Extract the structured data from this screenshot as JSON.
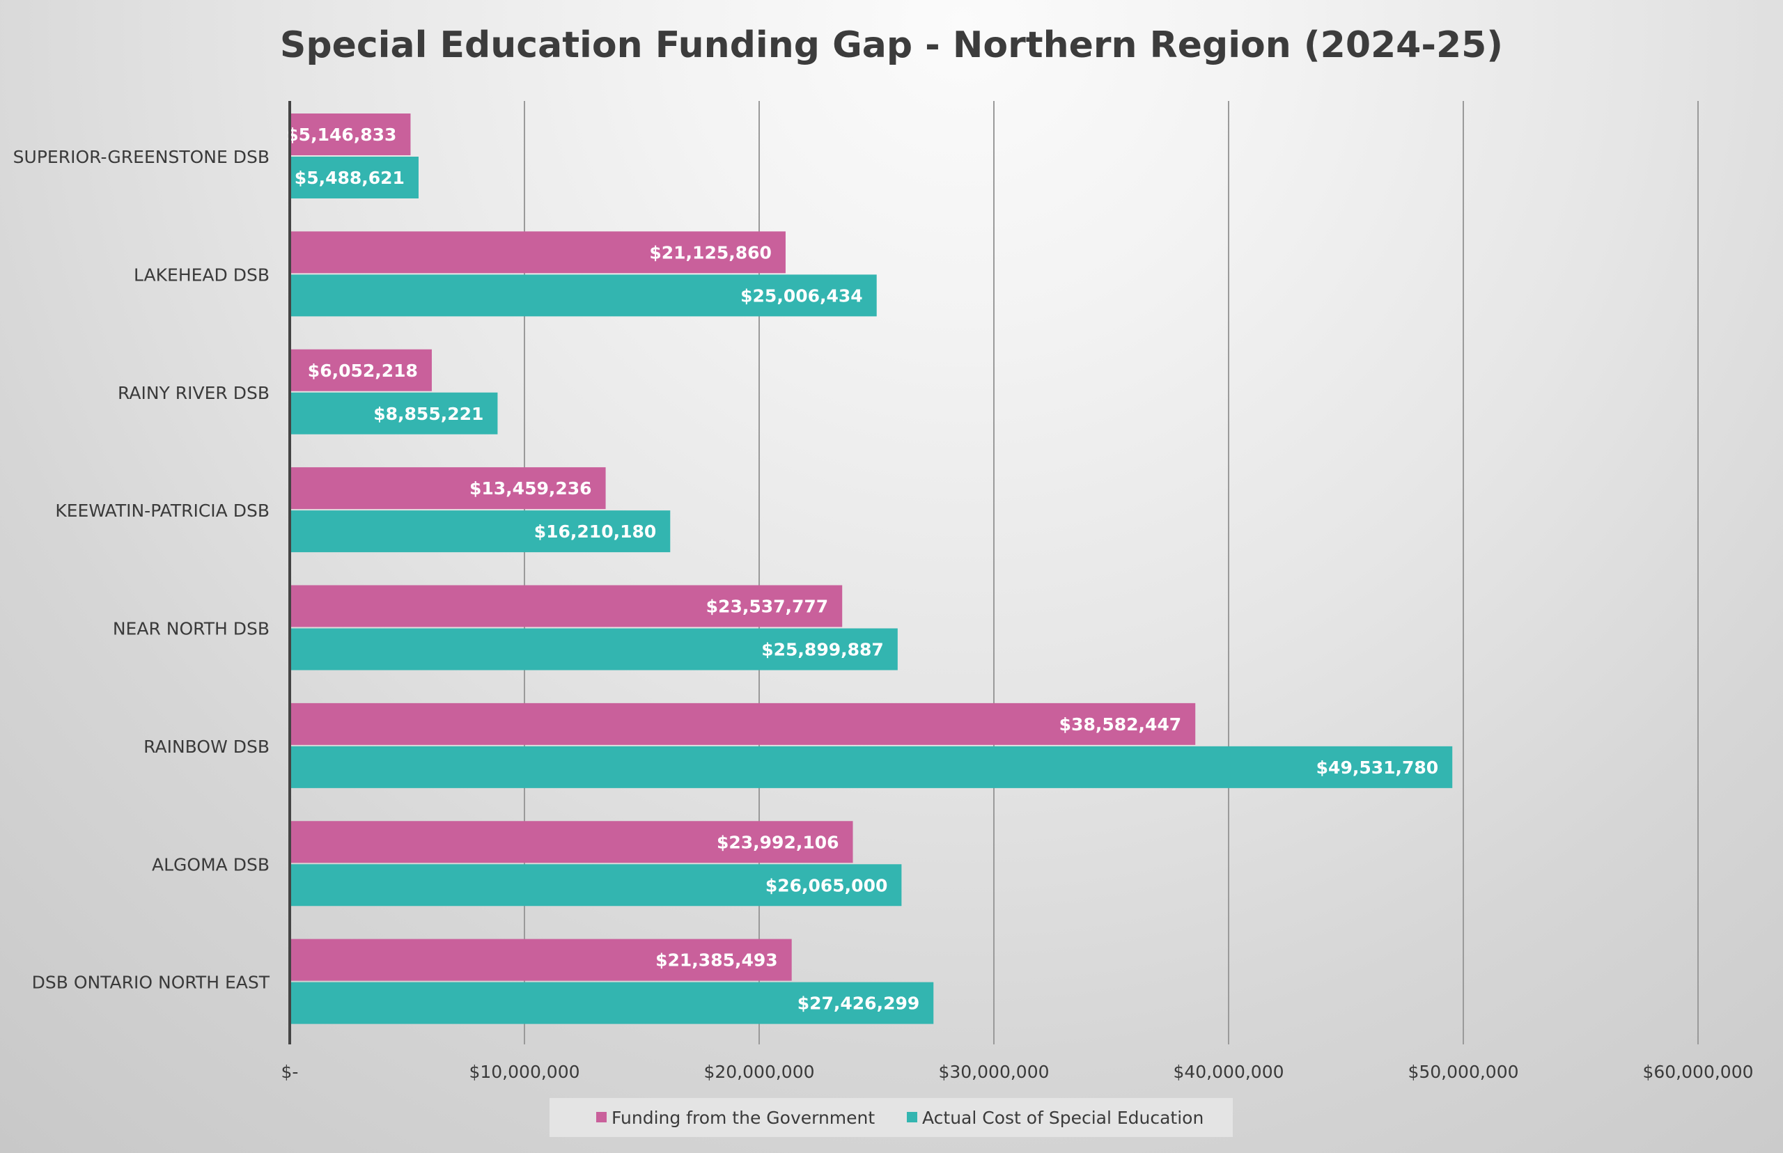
{
  "chart_data": {
    "type": "bar",
    "orientation": "horizontal",
    "title": "Special Education Funding Gap - Northern Region (2024-25)",
    "categories": [
      "SUPERIOR-GREENSTONE DSB",
      "LAKEHEAD DSB",
      "RAINY RIVER DSB",
      "KEEWATIN-PATRICIA DSB",
      "NEAR NORTH DSB",
      "RAINBOW DSB",
      "ALGOMA DSB",
      "DSB ONTARIO NORTH EAST"
    ],
    "series": [
      {
        "name": "Funding from the Government",
        "color": "#c9609b",
        "values": [
          5146833,
          21125860,
          6052218,
          13459236,
          23537777,
          38582447,
          23992106,
          21385493
        ],
        "labels": [
          "$5,146,833",
          "$21,125,860",
          "$6,052,218",
          "$13,459,236",
          "$23,537,777",
          "$38,582,447",
          "$23,992,106",
          "$21,385,493"
        ]
      },
      {
        "name": "Actual Cost of Special Education",
        "color": "#33b5b0",
        "values": [
          5488621,
          25006434,
          8855221,
          16210180,
          25899887,
          49531780,
          26065000,
          27426299
        ],
        "labels": [
          "$5,488,621",
          "$25,006,434",
          "$8,855,221",
          "$16,210,180",
          "$25,899,887",
          "$49,531,780",
          "$26,065,000",
          "$27,426,299"
        ]
      }
    ],
    "xlim": [
      0,
      60000000
    ],
    "ticks": [
      {
        "value": 0,
        "label": "$-"
      },
      {
        "value": 10000000,
        "label": "$10,000,000"
      },
      {
        "value": 20000000,
        "label": "$20,000,000"
      },
      {
        "value": 30000000,
        "label": "$30,000,000"
      },
      {
        "value": 40000000,
        "label": "$40,000,000"
      },
      {
        "value": 50000000,
        "label": "$50,000,000"
      },
      {
        "value": 60000000,
        "label": "$60,000,000"
      }
    ],
    "grid": true,
    "legend_position": "bottom"
  }
}
